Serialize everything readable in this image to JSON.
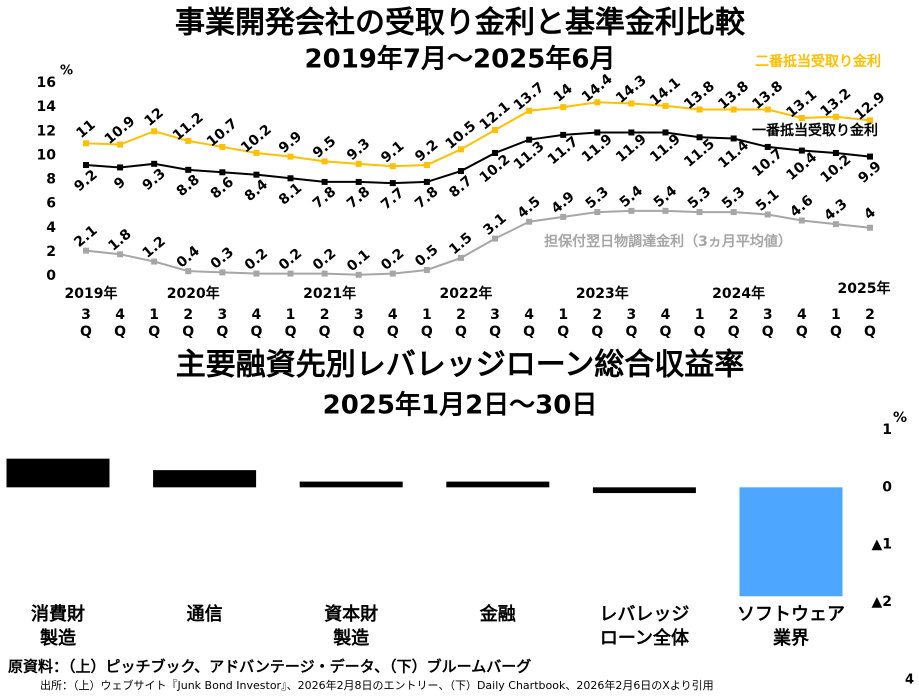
{
  "chart_data": [
    {
      "type": "line",
      "title": "事業開発会社の受取り金利と基準金利比較",
      "subtitle": "2019年7月～2025年6月",
      "y_unit": "%",
      "categories": [
        "3Q",
        "4Q",
        "1Q",
        "2Q",
        "3Q",
        "4Q",
        "1Q",
        "2Q",
        "3Q",
        "4Q",
        "1Q",
        "2Q",
        "3Q",
        "4Q",
        "1Q",
        "2Q",
        "3Q",
        "4Q",
        "1Q",
        "2Q",
        "3Q",
        "4Q",
        "1Q",
        "2Q"
      ],
      "year_labels": [
        "2019年",
        "2020年",
        "2021年",
        "2022年",
        "2023年",
        "2024年",
        "2025年"
      ],
      "ylim": [
        0,
        16
      ],
      "yticks": [
        0,
        2,
        4,
        6,
        8,
        10,
        12,
        14,
        16
      ],
      "series": [
        {
          "name": "二番抵当受取り金利",
          "color": "#ffc000",
          "values": [
            11.0,
            10.9,
            12.0,
            11.2,
            10.7,
            10.2,
            9.9,
            9.5,
            9.3,
            9.1,
            9.2,
            10.5,
            12.1,
            13.7,
            14.0,
            14.4,
            14.3,
            14.1,
            13.8,
            13.8,
            13.8,
            13.1,
            13.2,
            12.9
          ]
        },
        {
          "name": "一番抵当受取り金利",
          "color": "#000000",
          "values": [
            9.2,
            9.0,
            9.3,
            8.8,
            8.6,
            8.4,
            8.1,
            7.8,
            7.8,
            7.7,
            7.8,
            8.7,
            10.2,
            11.3,
            11.7,
            11.9,
            11.9,
            11.9,
            11.5,
            11.4,
            10.7,
            10.4,
            10.2,
            9.9
          ]
        },
        {
          "name": "担保付翌日物調達金利（3ヵ月平均値）",
          "color": "#a6a6a6",
          "values": [
            2.1,
            1.8,
            1.2,
            0.4,
            0.3,
            0.2,
            0.2,
            0.2,
            0.1,
            0.2,
            0.5,
            1.5,
            3.1,
            4.5,
            4.9,
            5.3,
            5.4,
            5.4,
            5.3,
            5.3,
            5.1,
            4.6,
            4.3,
            4.0
          ]
        }
      ]
    },
    {
      "type": "bar",
      "title": "主要融資先別レバレッジローン総合収益率",
      "subtitle": "2025年1月2日～30日",
      "y_unit": "%",
      "categories": [
        "消費財\n製造",
        "通信",
        "資本財\n製造",
        "金融",
        "レバレッジ\nローン全体",
        "ソフトウェア\n業界"
      ],
      "values": [
        0.5,
        0.3,
        0.1,
        0.1,
        -0.1,
        -1.9
      ],
      "colors": [
        "#000000",
        "#000000",
        "#000000",
        "#000000",
        "#000000",
        "#4da6ff"
      ],
      "ylim": [
        -2,
        1
      ],
      "yticks": [
        1,
        0,
        {
          "value": -1,
          "label": "▲1"
        },
        {
          "value": -2,
          "label": "▲2"
        }
      ]
    }
  ],
  "footer": {
    "source": "原資料：（上）ピッチブック、アドバンテージ・データ、（下）ブルームバーグ",
    "citation": "出所：（上）ウェブサイト『Junk Bond Investor』、2026年2月8日のエントリー、（下）Daily Chartbook、2026年2月6日のXより引用",
    "page": "4"
  }
}
